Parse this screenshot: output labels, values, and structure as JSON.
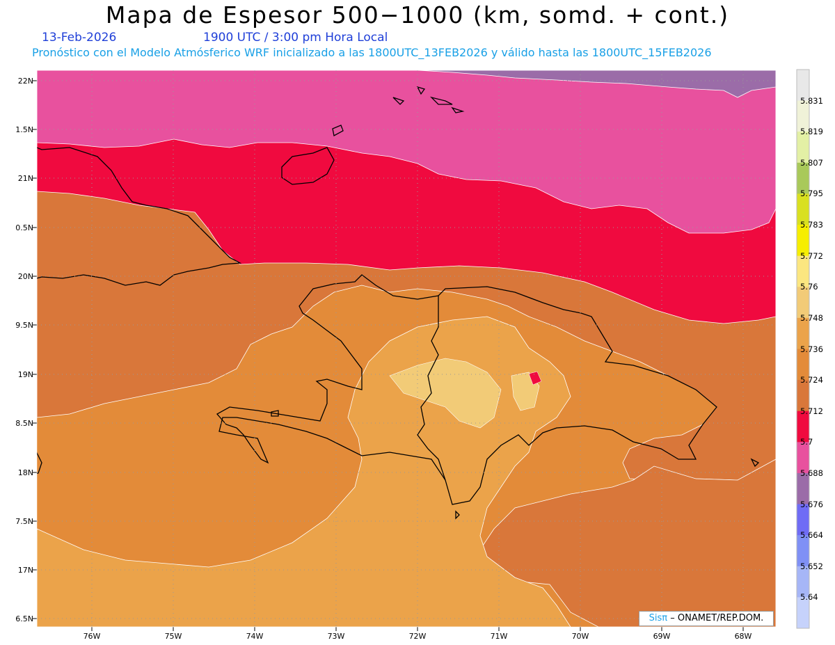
{
  "header": {
    "title": "Mapa de Espesor 500−1000 (km, somd. + cont.)",
    "date": "13-Feb-2026",
    "time": "1900 UTC / 3:00 pm Hora Local",
    "description": "Pronóstico con el Modelo Atmósferico WRF inicializado a las 1800UTC_13FEB2026 y válido hasta las  1800UTC_15FEB2026"
  },
  "axes": {
    "lat_labels": [
      "22N",
      "1.5N",
      "21N",
      "0.5N",
      "20N",
      "9.5N",
      "19N",
      "8.5N",
      "18N",
      "7.5N",
      "17N",
      "6.5N"
    ],
    "lon_labels": [
      "76W",
      "75W",
      "74W",
      "73W",
      "72W",
      "71W",
      "70W",
      "69W",
      "68W"
    ]
  },
  "colorbar": {
    "labels": [
      "5.831",
      "5.819",
      "5.807",
      "5.795",
      "5.783",
      "5.772",
      "5.76",
      "5.748",
      "5.736",
      "5.724",
      "5.712",
      "5.7",
      "5.688",
      "5.676",
      "5.664",
      "5.652",
      "5.64"
    ],
    "colors": [
      "#e8e8e8",
      "#f0f2d8",
      "#e3f0a5",
      "#a9c95a",
      "#d9e020",
      "#f6ee00",
      "#fbe680",
      "#f2cb77",
      "#eba34a",
      "#e38b39",
      "#d9773a",
      "#f00a3f",
      "#e8519e",
      "#9b6ca8",
      "#6f6cf5",
      "#7f90f5",
      "#a6b6f7",
      "#c6d2fb"
    ]
  },
  "credit": {
    "brand": "Sisπ",
    "org": "– ONAMET/REP.DOM."
  }
}
